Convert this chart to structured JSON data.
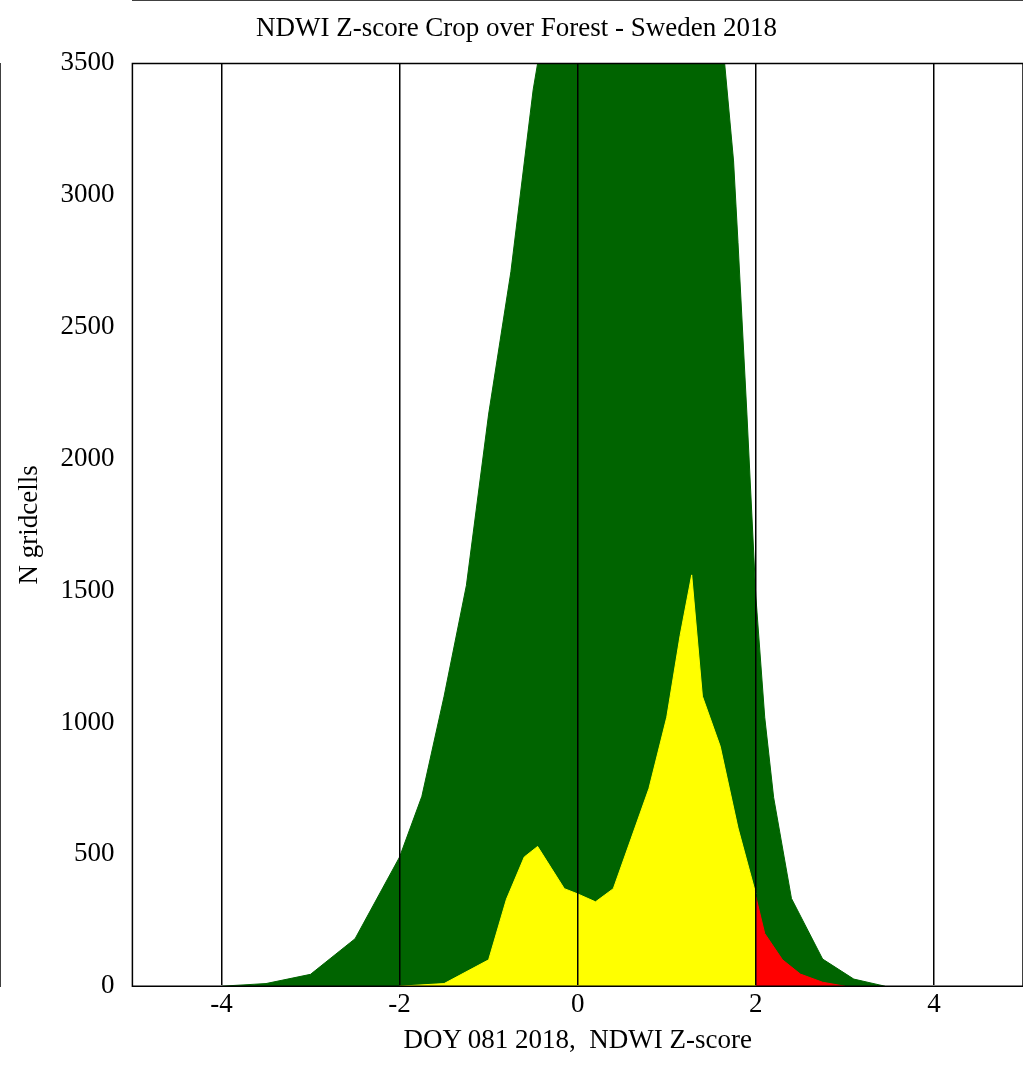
{
  "chart_data": {
    "type": "area",
    "title": "NDWI Z-score Crop over Forest - Sweden 2018",
    "xlabel": "DOY 081 2018,  NDWI Z-score",
    "ylabel": "N gridcells",
    "xlim": [
      -5,
      5
    ],
    "xticks": [
      -4,
      -2,
      0,
      2,
      4
    ],
    "ylim": [
      0,
      3500
    ],
    "yticks": [
      0,
      500,
      1000,
      1500,
      2000,
      2500,
      3000,
      3500
    ],
    "grid": "x",
    "legend": false,
    "series": [
      {
        "color": "#006400",
        "x": [
          -4,
          -3.5,
          -3,
          -2.5,
          -2,
          -1.75,
          -1.5,
          -1.25,
          -1,
          -0.75,
          -0.5,
          -0.45,
          0,
          0.5,
          1,
          1.5,
          1.65,
          1.75,
          1.8,
          1.9,
          2,
          2.1,
          2.2,
          2.4,
          2.75,
          3.1,
          3.45
        ],
        "values": [
          0,
          10,
          45,
          180,
          490,
          720,
          1100,
          1520,
          2170,
          2710,
          3400,
          3500,
          null,
          null,
          null,
          null,
          3500,
          3130,
          2820,
          2170,
          1480,
          1020,
          716,
          333,
          103,
          27,
          0
        ]
      },
      {
        "color": "#ffff00",
        "x": [
          -2,
          -1.5,
          -1,
          -0.8,
          -0.6,
          -0.45,
          -0.3,
          -0.15,
          0,
          0.2,
          0.4,
          0.6,
          0.8,
          1,
          1.15,
          1.28,
          1.4,
          1.6,
          1.8,
          2
        ],
        "values": [
          0,
          10,
          100,
          330,
          490,
          530,
          450,
          370,
          350,
          320,
          370,
          560,
          750,
          1020,
          1330,
          1560,
          1100,
          910,
          600,
          350
        ]
      },
      {
        "color": "#ff0000",
        "x": [
          2,
          2.1,
          2.3,
          2.5,
          2.75,
          3
        ],
        "values": [
          340,
          200,
          100,
          46,
          15,
          0
        ]
      }
    ]
  }
}
